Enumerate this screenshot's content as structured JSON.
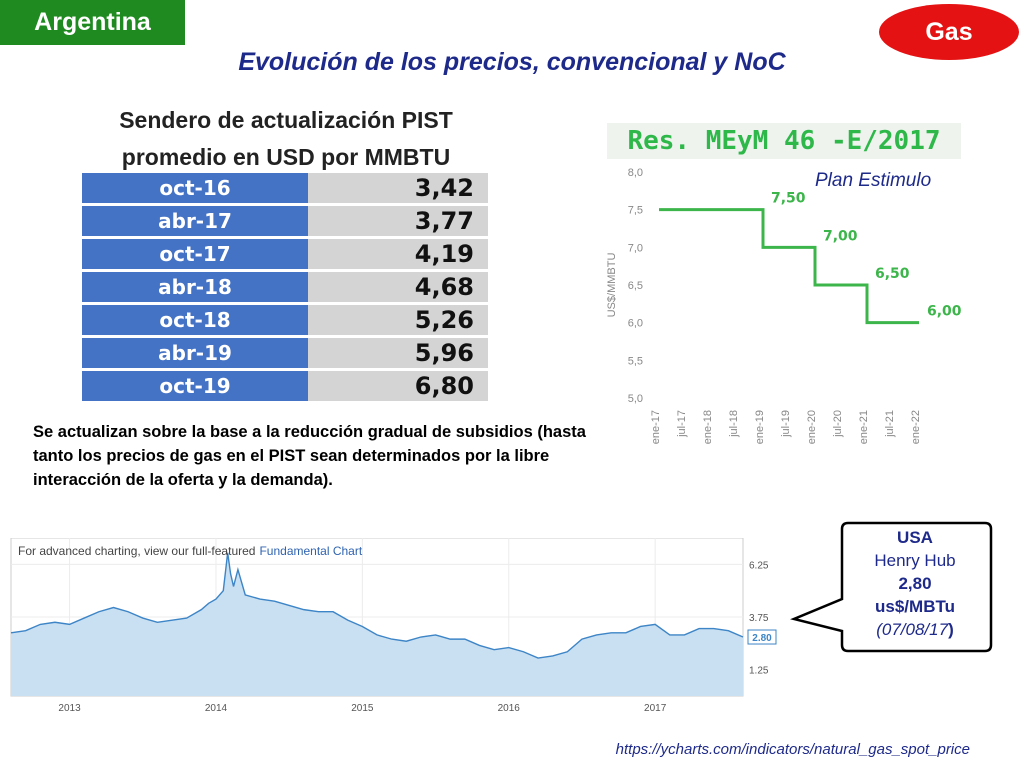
{
  "header": {
    "country": "Argentina",
    "badge": "Gas",
    "title": "Evolución de los precios, convencional y NoC"
  },
  "pist": {
    "title_line1": "Sendero de actualización PIST",
    "title_line2": "promedio en USD por MMBTU",
    "rows": [
      {
        "date": "oct-16",
        "value": "3,42"
      },
      {
        "date": "abr-17",
        "value": "3,77"
      },
      {
        "date": "oct-17",
        "value": "4,19"
      },
      {
        "date": "abr-18",
        "value": "4,68"
      },
      {
        "date": "oct-18",
        "value": "5,26"
      },
      {
        "date": "abr-19",
        "value": "5,96"
      },
      {
        "date": "oct-19",
        "value": "6,80"
      }
    ]
  },
  "note": "Se actualizan sobre la base a la reducción gradual de subsidios (hasta tanto los precios de gas en el PIST sean determinados por la libre interacción de la oferta y la demanda).",
  "resolution": {
    "title": "Res. MEyM 46 -E/2017",
    "plan_label": "Plan Estimulo"
  },
  "callout": {
    "country": "USA",
    "hub": "Henry Hub",
    "price": "2,80",
    "unit": "us$/MBTu",
    "date_open": "(07/08/17",
    "date_close": ")"
  },
  "source": "https://ycharts.com/indicators/natural_gas_spot_price",
  "chart_data": [
    {
      "type": "line",
      "ylabel": "US$/MMBTU",
      "ylim": [
        5.0,
        8.0
      ],
      "yticks": [
        "8,0",
        "7,5",
        "7,0",
        "6,5",
        "6,0",
        "5,5",
        "5,0"
      ],
      "ytick_values": [
        8.0,
        7.5,
        7.0,
        6.5,
        6.0,
        5.5,
        5.0
      ],
      "xticks": [
        "ene-17",
        "jul-17",
        "ene-18",
        "jul-18",
        "ene-19",
        "jul-19",
        "ene-20",
        "jul-20",
        "ene-21",
        "jul-21",
        "ene-22"
      ],
      "series": [
        {
          "x": [
            "ene-17",
            "ene-19",
            "ene-19",
            "ene-20",
            "ene-20",
            "ene-21",
            "ene-21",
            "ene-22"
          ],
          "values": [
            7.5,
            7.5,
            7.0,
            7.0,
            6.5,
            6.5,
            6.0,
            6.0
          ]
        }
      ],
      "labels": [
        {
          "x": "ene-19",
          "y": 7.5,
          "text": "7,50"
        },
        {
          "x": "ene-20",
          "y": 7.0,
          "text": "7,00"
        },
        {
          "x": "ene-21",
          "y": 6.5,
          "text": "6,50"
        },
        {
          "x": "ene-22",
          "y": 6.0,
          "text": "6,00"
        }
      ],
      "line_color": "#3cb54a",
      "grid": false
    },
    {
      "type": "area",
      "header": "For advanced charting, view our full-featured",
      "header_link": "Fundamental Chart",
      "ylim": [
        0.0,
        7.5
      ],
      "yticks": [
        "6.25",
        "3.75",
        "1.25"
      ],
      "ytick_values": [
        6.25,
        3.75,
        1.25
      ],
      "xticks": [
        "2013",
        "2014",
        "2015",
        "2016",
        "2017"
      ],
      "xtick_values": [
        2013.0,
        2014.0,
        2015.0,
        2016.0,
        2017.0
      ],
      "xlim": [
        2012.6,
        2017.6
      ],
      "last_value_label": "2.80",
      "series": [
        {
          "x": [
            2012.6,
            2012.7,
            2012.8,
            2012.9,
            2013.0,
            2013.1,
            2013.2,
            2013.3,
            2013.4,
            2013.5,
            2013.6,
            2013.7,
            2013.8,
            2013.9,
            2013.95,
            2014.0,
            2014.05,
            2014.08,
            2014.1,
            2014.12,
            2014.15,
            2014.2,
            2014.3,
            2014.4,
            2014.5,
            2014.6,
            2014.7,
            2014.8,
            2014.9,
            2015.0,
            2015.1,
            2015.2,
            2015.3,
            2015.4,
            2015.5,
            2015.6,
            2015.7,
            2015.8,
            2015.9,
            2016.0,
            2016.1,
            2016.2,
            2016.3,
            2016.4,
            2016.5,
            2016.6,
            2016.7,
            2016.8,
            2016.9,
            2017.0,
            2017.1,
            2017.2,
            2017.3,
            2017.4,
            2017.5,
            2017.6
          ],
          "values": [
            3.0,
            3.1,
            3.4,
            3.5,
            3.4,
            3.7,
            4.0,
            4.2,
            4.0,
            3.7,
            3.5,
            3.6,
            3.7,
            4.1,
            4.4,
            4.6,
            5.0,
            6.8,
            5.8,
            5.2,
            6.0,
            4.8,
            4.6,
            4.5,
            4.3,
            4.1,
            4.0,
            4.0,
            3.6,
            3.3,
            2.9,
            2.7,
            2.6,
            2.8,
            2.9,
            2.7,
            2.7,
            2.4,
            2.2,
            2.3,
            2.1,
            1.8,
            1.9,
            2.1,
            2.7,
            2.9,
            3.0,
            3.0,
            3.3,
            3.4,
            2.9,
            2.9,
            3.2,
            3.2,
            3.1,
            2.8
          ]
        }
      ],
      "fill_color": "#c9dff2",
      "line_color": "#3d85c6",
      "grid": true
    }
  ]
}
